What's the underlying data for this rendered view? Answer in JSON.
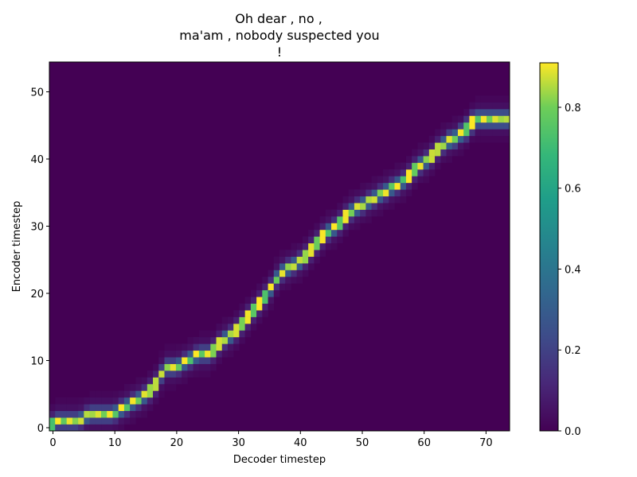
{
  "chart_data": {
    "type": "heatmap",
    "title_lines": [
      "Oh dear , no ,",
      "ma'am , nobody suspected you",
      "!"
    ],
    "xlabel": "Decoder timestep",
    "ylabel": "Encoder timestep",
    "x_range": [
      0,
      80
    ],
    "y_range": [
      0,
      55
    ],
    "x_ticks": [
      0,
      10,
      20,
      30,
      40,
      50,
      60,
      70
    ],
    "y_ticks": [
      0,
      10,
      20,
      30,
      40,
      50
    ],
    "x_tick_labels": [
      "0",
      "10",
      "20",
      "30",
      "40",
      "50",
      "60",
      "70"
    ],
    "y_tick_labels": [
      "0",
      "10",
      "20",
      "30",
      "40",
      "50"
    ],
    "colormap": "viridis",
    "color_range": [
      0.0,
      0.91
    ],
    "colorbar_ticks": [
      0.0,
      0.2,
      0.4,
      0.6,
      0.8
    ],
    "colorbar_tick_labels": [
      "0.0",
      "0.2",
      "0.4",
      "0.6",
      "0.8"
    ],
    "grid": false,
    "background_value": 0.0,
    "alignment_path": [
      [
        0,
        0
      ],
      [
        1,
        1
      ],
      [
        3,
        1
      ],
      [
        5,
        1
      ],
      [
        7,
        2
      ],
      [
        9,
        2
      ],
      [
        11,
        2
      ],
      [
        13,
        3
      ],
      [
        15,
        4
      ],
      [
        17,
        5
      ],
      [
        19,
        7
      ],
      [
        20,
        9
      ],
      [
        22,
        9
      ],
      [
        24,
        10
      ],
      [
        26,
        11
      ],
      [
        28,
        11
      ],
      [
        30,
        13
      ],
      [
        32,
        14
      ],
      [
        34,
        16
      ],
      [
        36,
        18
      ],
      [
        38,
        20
      ],
      [
        40,
        23
      ],
      [
        42,
        24
      ],
      [
        44,
        25
      ],
      [
        46,
        27
      ],
      [
        48,
        29
      ],
      [
        50,
        30
      ],
      [
        52,
        32
      ],
      [
        54,
        33
      ],
      [
        56,
        34
      ],
      [
        58,
        35
      ],
      [
        60,
        36
      ],
      [
        62,
        37
      ],
      [
        64,
        39
      ],
      [
        66,
        40
      ],
      [
        68,
        42
      ],
      [
        70,
        43
      ],
      [
        72,
        44
      ],
      [
        74,
        46
      ],
      [
        76,
        46
      ],
      [
        79,
        46
      ]
    ]
  }
}
